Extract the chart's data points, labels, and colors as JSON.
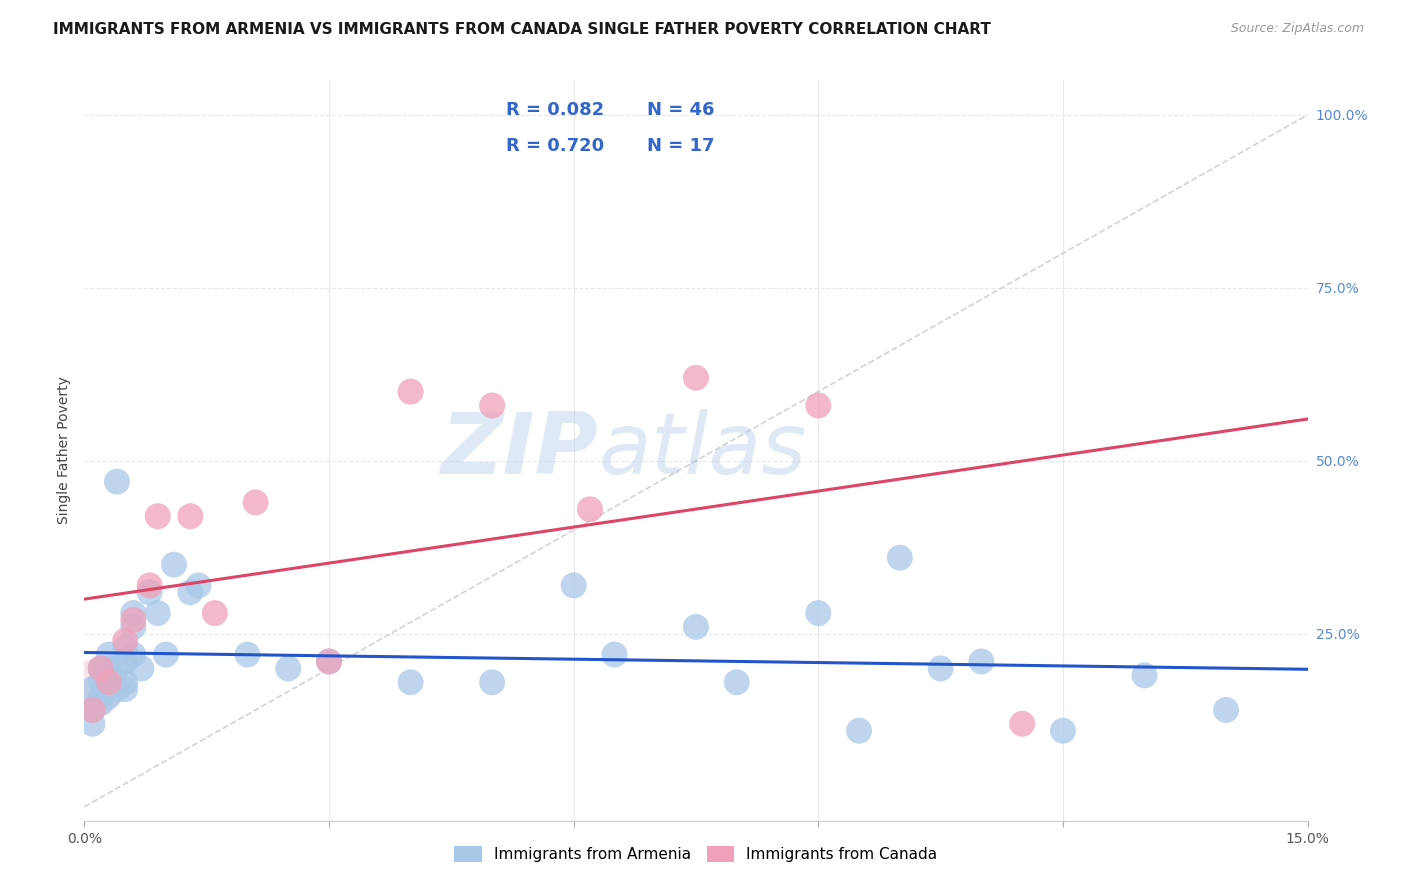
{
  "title": "IMMIGRANTS FROM ARMENIA VS IMMIGRANTS FROM CANADA SINGLE FATHER POVERTY CORRELATION CHART",
  "source": "Source: ZipAtlas.com",
  "ylabel": "Single Father Poverty",
  "xlim": [
    0.0,
    0.15
  ],
  "ylim": [
    -0.02,
    1.05
  ],
  "armenia_R": 0.082,
  "armenia_N": 46,
  "canada_R": 0.72,
  "canada_N": 17,
  "armenia_color": "#a8c8e8",
  "canada_color": "#f0a0b8",
  "armenia_line_color": "#2255cc",
  "canada_line_color": "#dd4466",
  "ref_line_color": "#c8c8c8",
  "armenia_x": [
    0.001,
    0.001,
    0.001,
    0.002,
    0.002,
    0.002,
    0.002,
    0.003,
    0.003,
    0.003,
    0.003,
    0.003,
    0.004,
    0.004,
    0.004,
    0.005,
    0.005,
    0.005,
    0.005,
    0.006,
    0.006,
    0.006,
    0.007,
    0.008,
    0.009,
    0.01,
    0.011,
    0.013,
    0.014,
    0.02,
    0.025,
    0.03,
    0.04,
    0.05,
    0.06,
    0.065,
    0.075,
    0.08,
    0.09,
    0.095,
    0.1,
    0.105,
    0.11,
    0.12,
    0.13,
    0.14
  ],
  "armenia_y": [
    0.17,
    0.14,
    0.12,
    0.18,
    0.16,
    0.2,
    0.15,
    0.18,
    0.2,
    0.16,
    0.22,
    0.19,
    0.2,
    0.17,
    0.47,
    0.18,
    0.21,
    0.17,
    0.23,
    0.28,
    0.26,
    0.22,
    0.2,
    0.31,
    0.28,
    0.22,
    0.35,
    0.31,
    0.32,
    0.22,
    0.2,
    0.21,
    0.18,
    0.18,
    0.32,
    0.22,
    0.26,
    0.18,
    0.28,
    0.11,
    0.36,
    0.2,
    0.21,
    0.11,
    0.19,
    0.14
  ],
  "canada_x": [
    0.001,
    0.002,
    0.003,
    0.005,
    0.006,
    0.008,
    0.009,
    0.013,
    0.016,
    0.021,
    0.03,
    0.04,
    0.05,
    0.062,
    0.075,
    0.09,
    0.115
  ],
  "canada_y": [
    0.14,
    0.2,
    0.18,
    0.24,
    0.27,
    0.32,
    0.42,
    0.42,
    0.28,
    0.44,
    0.21,
    0.6,
    0.58,
    0.43,
    0.62,
    0.58,
    0.12
  ],
  "background_color": "#ffffff",
  "grid_color": "#e8e8e8",
  "title_fontsize": 11,
  "axis_label_fontsize": 10,
  "tick_fontsize": 10,
  "legend_fontsize": 13
}
